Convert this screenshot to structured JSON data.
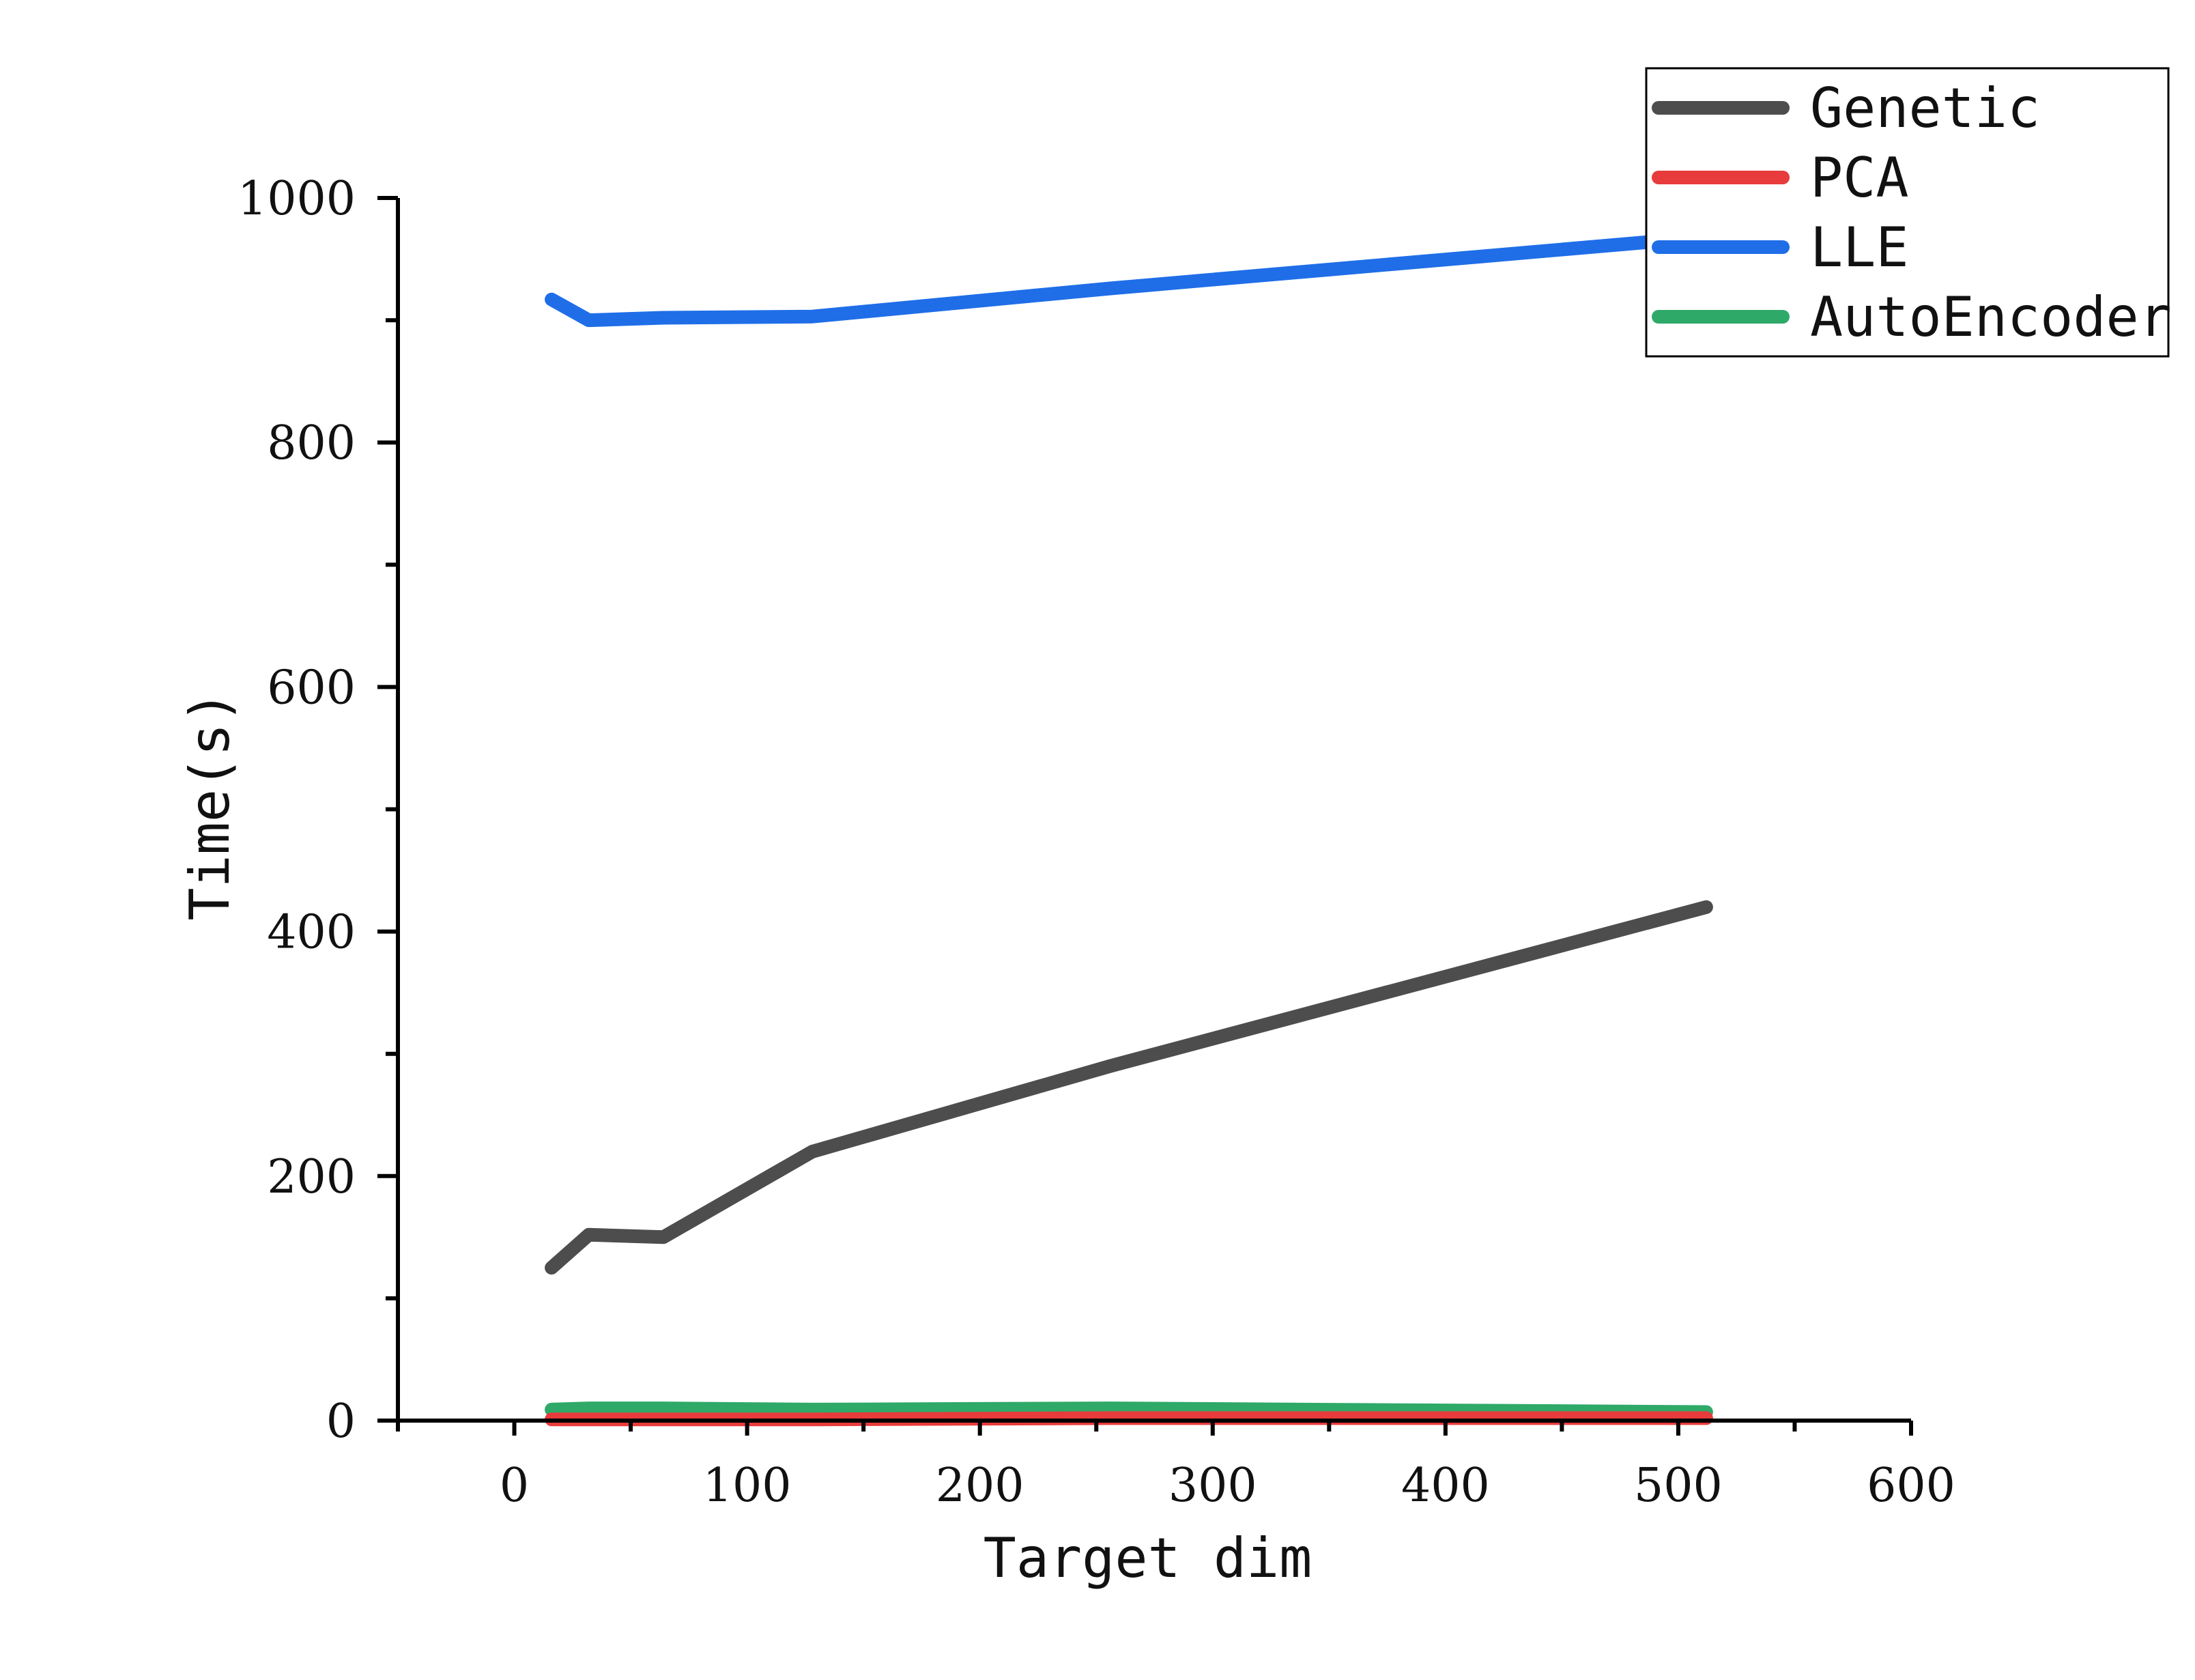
{
  "chart_data": {
    "type": "line",
    "xlabel": "Target dim",
    "ylabel": "Time(s)",
    "xlim": [
      -50,
      600
    ],
    "ylim": [
      0,
      1000
    ],
    "x_ticks": [
      0,
      100,
      200,
      300,
      400,
      500,
      600
    ],
    "x_minor_ticks": [
      -50,
      50,
      150,
      250,
      350,
      450,
      550
    ],
    "y_ticks": [
      0,
      200,
      400,
      600,
      800,
      1000
    ],
    "y_minor_ticks": [
      100,
      300,
      500,
      700,
      900
    ],
    "x_tick_labels": [
      "0",
      "100",
      "200",
      "300",
      "400",
      "500",
      "600"
    ],
    "y_tick_labels": [
      "0",
      "200",
      "400",
      "600",
      "800",
      "1000"
    ],
    "grid": false,
    "legend_position": "top-right",
    "series": [
      {
        "name": "Genetic",
        "color": "#4d4d4d",
        "x": [
          16,
          32,
          64,
          128,
          256,
          512
        ],
        "y": [
          125,
          152,
          150,
          220,
          290,
          420
        ]
      },
      {
        "name": "PCA",
        "color": "#e83b3b",
        "x": [
          16,
          32,
          64,
          128,
          256,
          512
        ],
        "y": [
          1,
          1,
          1,
          1,
          2,
          2
        ]
      },
      {
        "name": "LLE",
        "color": "#1f6ee8",
        "x": [
          16,
          32,
          64,
          128,
          256,
          512
        ],
        "y": [
          917,
          900,
          902,
          903,
          926,
          968
        ]
      },
      {
        "name": "AutoEncoder",
        "color": "#2fa968",
        "x": [
          16,
          32,
          64,
          128,
          256,
          512
        ],
        "y": [
          9,
          10,
          10,
          9,
          10,
          7
        ]
      }
    ]
  }
}
